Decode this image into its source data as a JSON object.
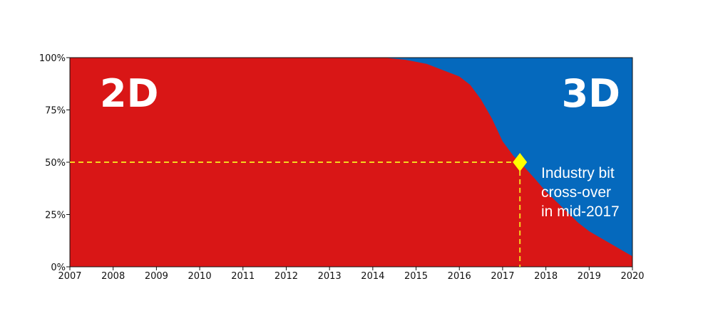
{
  "chart_data": {
    "type": "area",
    "x": [
      2007,
      2008,
      2009,
      2010,
      2011,
      2012,
      2013,
      2014,
      2014.25,
      2014.5,
      2014.75,
      2015,
      2015.25,
      2015.5,
      2015.75,
      2016,
      2016.25,
      2016.5,
      2016.75,
      2017,
      2017.25,
      2017.4,
      2017.75,
      2018,
      2018.25,
      2018.5,
      2018.75,
      2019,
      2019.25,
      2019.5,
      2019.75,
      2020
    ],
    "series": [
      {
        "name": "2D",
        "color": "#d91616",
        "values": [
          100,
          100,
          100,
          100,
          100,
          100,
          100,
          100,
          100,
          99.5,
          99,
          98,
          97,
          95,
          93,
          91,
          87,
          80,
          71,
          60,
          53,
          50,
          42,
          36,
          31,
          26,
          21,
          17,
          14,
          11,
          8,
          5
        ]
      },
      {
        "name": "3D",
        "color": "#0569bd",
        "values": [
          0,
          0,
          0,
          0,
          0,
          0,
          0,
          0,
          0,
          0.5,
          1,
          2,
          3,
          5,
          7,
          9,
          13,
          20,
          29,
          40,
          47,
          50,
          58,
          64,
          69,
          74,
          79,
          83,
          86,
          89,
          92,
          95
        ]
      }
    ],
    "xlim": [
      2007,
      2020
    ],
    "ylim": [
      0,
      100
    ],
    "x_ticks": [
      "2007",
      "2008",
      "2009",
      "2010",
      "2011",
      "2012",
      "2013",
      "2014",
      "2015",
      "2016",
      "2017",
      "2018",
      "2019",
      "2020"
    ],
    "y_ticks": [
      "0%",
      "25%",
      "50%",
      "75%",
      "100%"
    ],
    "crossover": {
      "x": 2017.4,
      "y": 50,
      "marker_color": "#ffff00",
      "guide_color": "#f5d51e"
    },
    "labels": {
      "left_big": "2D",
      "right_big": "3D",
      "annotation": [
        "Industry bit",
        "cross-over",
        "in mid-2017"
      ]
    },
    "grid": false,
    "stacked": true
  }
}
